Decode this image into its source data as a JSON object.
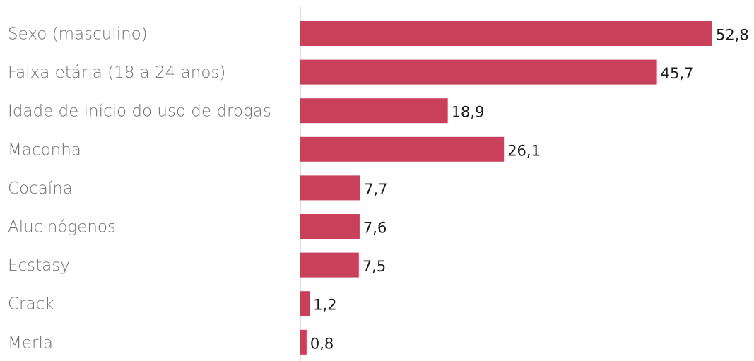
{
  "chart_data": {
    "type": "bar",
    "orientation": "horizontal",
    "categories": [
      "Sexo (masculino)",
      "Faixa etária (18 a 24 anos)",
      "Idade de início do uso de drogas",
      "Maconha",
      "Cocaína",
      "Alucinógenos",
      "Ecstasy",
      "Crack",
      "Merla"
    ],
    "values": [
      52.8,
      45.7,
      18.9,
      26.1,
      7.7,
      7.6,
      7.5,
      1.2,
      0.8
    ],
    "value_labels": [
      "52,8",
      "45,7",
      "18,9",
      "26,1",
      "7,7",
      "7,6",
      "7,5",
      "1,2",
      "0,8"
    ],
    "bar_color": "#c9405a",
    "xlim": [
      0,
      52.8
    ],
    "grid": false,
    "legend": "none",
    "title": "",
    "xlabel": "",
    "ylabel": ""
  }
}
